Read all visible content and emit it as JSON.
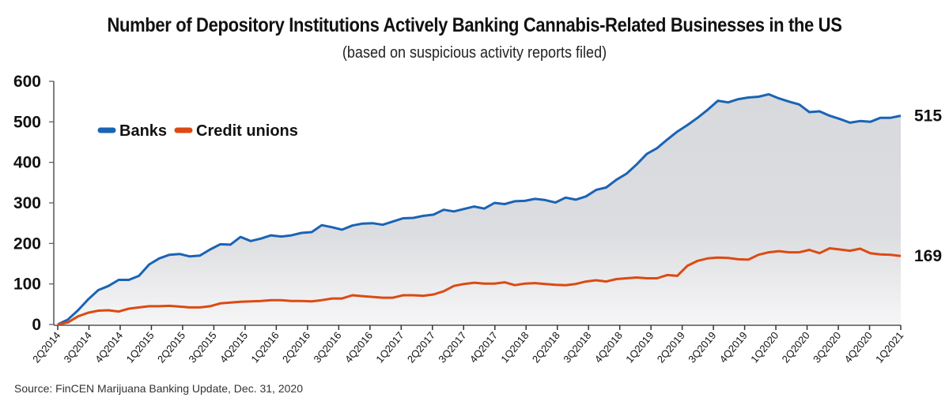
{
  "chart_data": {
    "type": "area",
    "title": "Number of Depository Institutions Actively Banking Cannabis-Related Businesses in the US",
    "subtitle": "(based on suspicious activity reports filed)",
    "source": "Source: FinCEN Marijuana Banking Update, Dec. 31, 2020",
    "xlabel": "",
    "ylabel": "",
    "ylim": [
      0,
      600
    ],
    "yticks": [
      0,
      100,
      200,
      300,
      400,
      500,
      600
    ],
    "ytick_labels": [
      "0",
      "100",
      "200",
      "300",
      "400",
      "500",
      "600"
    ],
    "grid": false,
    "legend_position": "top-left",
    "x_tick_labels": [
      "2Q2014",
      "3Q2014",
      "4Q2014",
      "1Q2015",
      "2Q2015",
      "3Q2015",
      "4Q2015",
      "1Q2016",
      "2Q2016",
      "3Q2016",
      "4Q2016",
      "1Q2017",
      "2Q2017",
      "3Q2017",
      "4Q2017",
      "1Q2018",
      "2Q2018",
      "3Q2018",
      "4Q2018",
      "1Q2019",
      "2Q2019",
      "3Q2019",
      "4Q2019",
      "1Q2020",
      "2Q2020",
      "3Q2020",
      "4Q2020",
      "1Q2021"
    ],
    "x_frequency": "monthly (3 points per quarter tick)",
    "series": [
      {
        "name": "Banks",
        "color": "#1a63b5",
        "end_label": "515",
        "values": [
          0,
          12,
          35,
          62,
          85,
          95,
          110,
          110,
          120,
          148,
          163,
          172,
          174,
          168,
          170,
          185,
          198,
          197,
          216,
          206,
          212,
          220,
          217,
          220,
          226,
          228,
          245,
          240,
          234,
          244,
          249,
          250,
          246,
          254,
          262,
          263,
          268,
          271,
          283,
          279,
          285,
          291,
          286,
          300,
          297,
          304,
          305,
          310,
          307,
          301,
          313,
          308,
          316,
          332,
          338,
          357,
          372,
          395,
          421,
          435,
          456,
          476,
          492,
          510,
          530,
          552,
          548,
          556,
          560,
          562,
          568,
          558,
          550,
          543,
          524,
          526,
          515,
          507,
          498,
          502,
          500,
          510,
          510,
          515
        ]
      },
      {
        "name": "Credit unions",
        "color": "#dc4a12",
        "end_label": "169",
        "values": [
          0,
          5,
          20,
          29,
          34,
          35,
          32,
          39,
          42,
          45,
          45,
          46,
          44,
          42,
          42,
          45,
          52,
          54,
          56,
          57,
          58,
          60,
          60,
          58,
          58,
          57,
          60,
          64,
          64,
          72,
          70,
          68,
          66,
          66,
          72,
          72,
          71,
          74,
          82,
          95,
          100,
          103,
          101,
          101,
          104,
          97,
          101,
          102,
          100,
          98,
          97,
          100,
          106,
          109,
          106,
          112,
          114,
          116,
          114,
          114,
          122,
          120,
          145,
          157,
          163,
          165,
          164,
          161,
          160,
          172,
          178,
          181,
          178,
          178,
          184,
          176,
          188,
          185,
          182,
          187,
          176,
          173,
          172,
          169
        ]
      }
    ]
  }
}
